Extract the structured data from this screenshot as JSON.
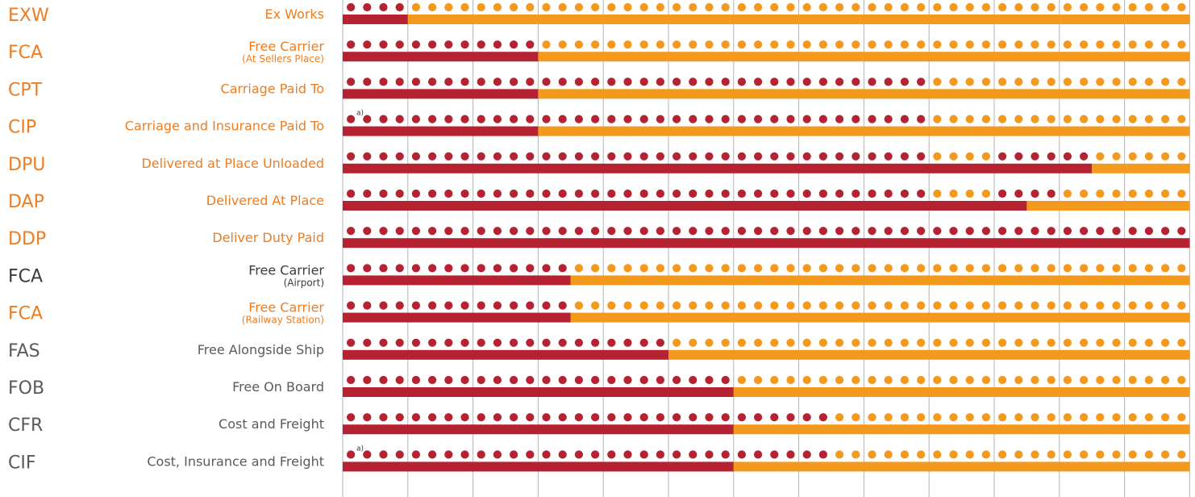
{
  "colors": {
    "seller": "#b52232",
    "buyer": "#f39a1e",
    "label_orange": "#ee7d22",
    "label_dark": "#3c3c3c",
    "label_gray": "#5a5a5a",
    "gridline": "#b5b5b5"
  },
  "chart_data": {
    "type": "table",
    "columns": 13,
    "dots_per_column": 4,
    "rows": [
      {
        "code": "EXW",
        "name": "Ex Works",
        "sub": "",
        "text_color": "orange",
        "cost_dots": 4,
        "risk_columns": 1,
        "note": ""
      },
      {
        "code": "FCA",
        "name": "Free Carrier",
        "sub": "(At Sellers Place)",
        "text_color": "orange",
        "cost_dots": 12,
        "risk_columns": 3,
        "note": ""
      },
      {
        "code": "CPT",
        "name": "Carriage Paid To",
        "sub": "",
        "text_color": "orange",
        "cost_dots": 36,
        "risk_columns": 3,
        "orange_dots": [
          40,
          41
        ],
        "note": ""
      },
      {
        "code": "CIP",
        "name": "Carriage and Insurance Paid To",
        "sub": "",
        "text_color": "orange",
        "cost_dots": 36,
        "risk_columns": 3,
        "orange_dots": [
          40,
          41
        ],
        "note": "a)"
      },
      {
        "code": "DPU",
        "name": "Delivered at Place Unloaded",
        "sub": "",
        "text_color": "orange",
        "cost_dots": 48,
        "risk_columns": 11.5,
        "orange_dots": [
          36,
          37,
          38,
          39,
          46,
          47
        ],
        "note": ""
      },
      {
        "code": "DAP",
        "name": "Delivered At Place",
        "sub": "",
        "text_color": "orange",
        "cost_dots": 44,
        "risk_columns": 10.5,
        "orange_dots": [
          36,
          37,
          38,
          39
        ],
        "note": ""
      },
      {
        "code": "DDP",
        "name": "Deliver Duty Paid",
        "sub": "",
        "text_color": "orange",
        "cost_dots": 52,
        "risk_columns": 13,
        "note": ""
      },
      {
        "code": "FCA",
        "name": "Free Carrier",
        "sub": "(Airport)",
        "text_color": "dark",
        "cost_dots": 14,
        "risk_columns": 3.5,
        "note": ""
      },
      {
        "code": "FCA",
        "name": "Free Carrier",
        "sub": "(Railway Station)",
        "text_color": "orange",
        "cost_dots": 14,
        "risk_columns": 3.5,
        "note": ""
      },
      {
        "code": "FAS",
        "name": "Free Alongside Ship",
        "sub": "",
        "text_color": "gray",
        "cost_dots": 20,
        "risk_columns": 5,
        "note": ""
      },
      {
        "code": "FOB",
        "name": "Free On Board",
        "sub": "",
        "text_color": "gray",
        "cost_dots": 24,
        "risk_columns": 6,
        "note": ""
      },
      {
        "code": "CFR",
        "name": "Cost and Freight",
        "sub": "",
        "text_color": "gray",
        "cost_dots": 30,
        "risk_columns": 6,
        "note": ""
      },
      {
        "code": "CIF",
        "name": "Cost, Insurance and Freight",
        "sub": "",
        "text_color": "gray",
        "cost_dots": 30,
        "risk_columns": 6,
        "note": "a)"
      }
    ]
  }
}
